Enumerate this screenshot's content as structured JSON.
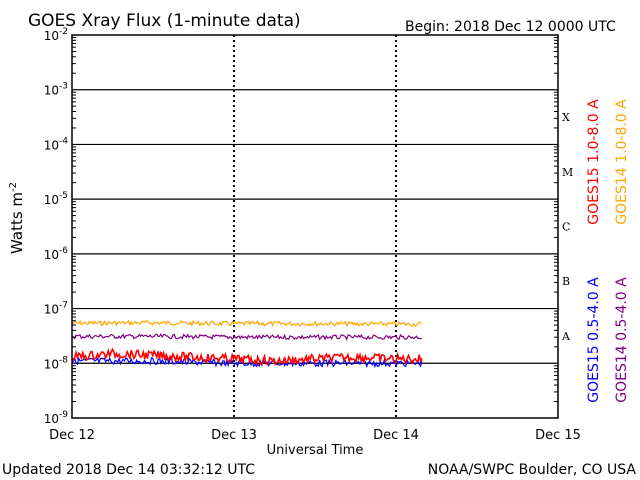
{
  "header": {
    "title": "GOES Xray Flux (1-minute data)",
    "begin": "Begin:  2018 Dec 12 0000 UTC"
  },
  "footer": {
    "updated": "Updated 2018 Dec 14 03:32:12 UTC",
    "credit": "NOAA/SWPC Boulder, CO USA"
  },
  "chart_data": {
    "type": "line",
    "title": "GOES Xray Flux (1-minute data)",
    "xlabel": "Universal Time",
    "ylabel": "Watts m",
    "ylabel_superscript": "-2",
    "yscale": "log",
    "ylim": [
      1e-09,
      0.01
    ],
    "xlim": [
      "2018-12-12 00:00",
      "2018-12-15 00:00"
    ],
    "x_ticks": [
      "Dec 12",
      "Dec 13",
      "Dec 14",
      "Dec 15"
    ],
    "y_ticks": [
      {
        "base": "10",
        "exp": "-2",
        "value": 0.01
      },
      {
        "base": "10",
        "exp": "-3",
        "value": 0.001
      },
      {
        "base": "10",
        "exp": "-4",
        "value": 0.0001
      },
      {
        "base": "10",
        "exp": "-5",
        "value": 1e-05
      },
      {
        "base": "10",
        "exp": "-6",
        "value": 1e-06
      },
      {
        "base": "10",
        "exp": "-7",
        "value": 1e-07
      },
      {
        "base": "10",
        "exp": "-8",
        "value": 1e-08
      },
      {
        "base": "10",
        "exp": "-9",
        "value": 1e-09
      }
    ],
    "flare_classes": [
      {
        "label": "X",
        "lower": 0.0001
      },
      {
        "label": "M",
        "lower": 1e-05
      },
      {
        "label": "C",
        "lower": 1e-06
      },
      {
        "label": "B",
        "lower": 1e-07
      },
      {
        "label": "A",
        "lower": 1e-08
      }
    ],
    "grid": true,
    "legend_position": "right",
    "series": [
      {
        "name": "GOES15 1.0-8.0 A",
        "color": "#ff0000",
        "x": [
          0,
          0.25,
          0.5,
          0.75,
          1.0,
          1.25,
          1.5,
          1.75,
          2.0,
          2.16
        ],
        "y": [
          1.3e-08,
          1.5e-08,
          1.4e-08,
          1.3e-08,
          1.2e-08,
          1.1e-08,
          1.2e-08,
          1.3e-08,
          1.2e-08,
          1.2e-08
        ]
      },
      {
        "name": "GOES14 1.0-8.0 A",
        "color": "#ffa500",
        "x": [
          0,
          0.5,
          1.0,
          1.5,
          2.0,
          2.16
        ],
        "y": [
          5.4e-08,
          5.5e-08,
          5.3e-08,
          5.3e-08,
          5.2e-08,
          5.2e-08
        ]
      },
      {
        "name": "GOES15 0.5-4.0 A",
        "color": "#0000ff",
        "x": [
          0,
          0.5,
          1.0,
          1.5,
          2.0,
          2.16
        ],
        "y": [
          1.1e-08,
          1.1e-08,
          1e-08,
          1e-08,
          1e-08,
          1e-08
        ]
      },
      {
        "name": "GOES14 0.5-4.0 A",
        "color": "#800080",
        "x": [
          0,
          0.5,
          1.0,
          1.5,
          2.0,
          2.16
        ],
        "y": [
          3.1e-08,
          3.1e-08,
          3e-08,
          3e-08,
          3e-08,
          3e-08
        ]
      }
    ]
  }
}
